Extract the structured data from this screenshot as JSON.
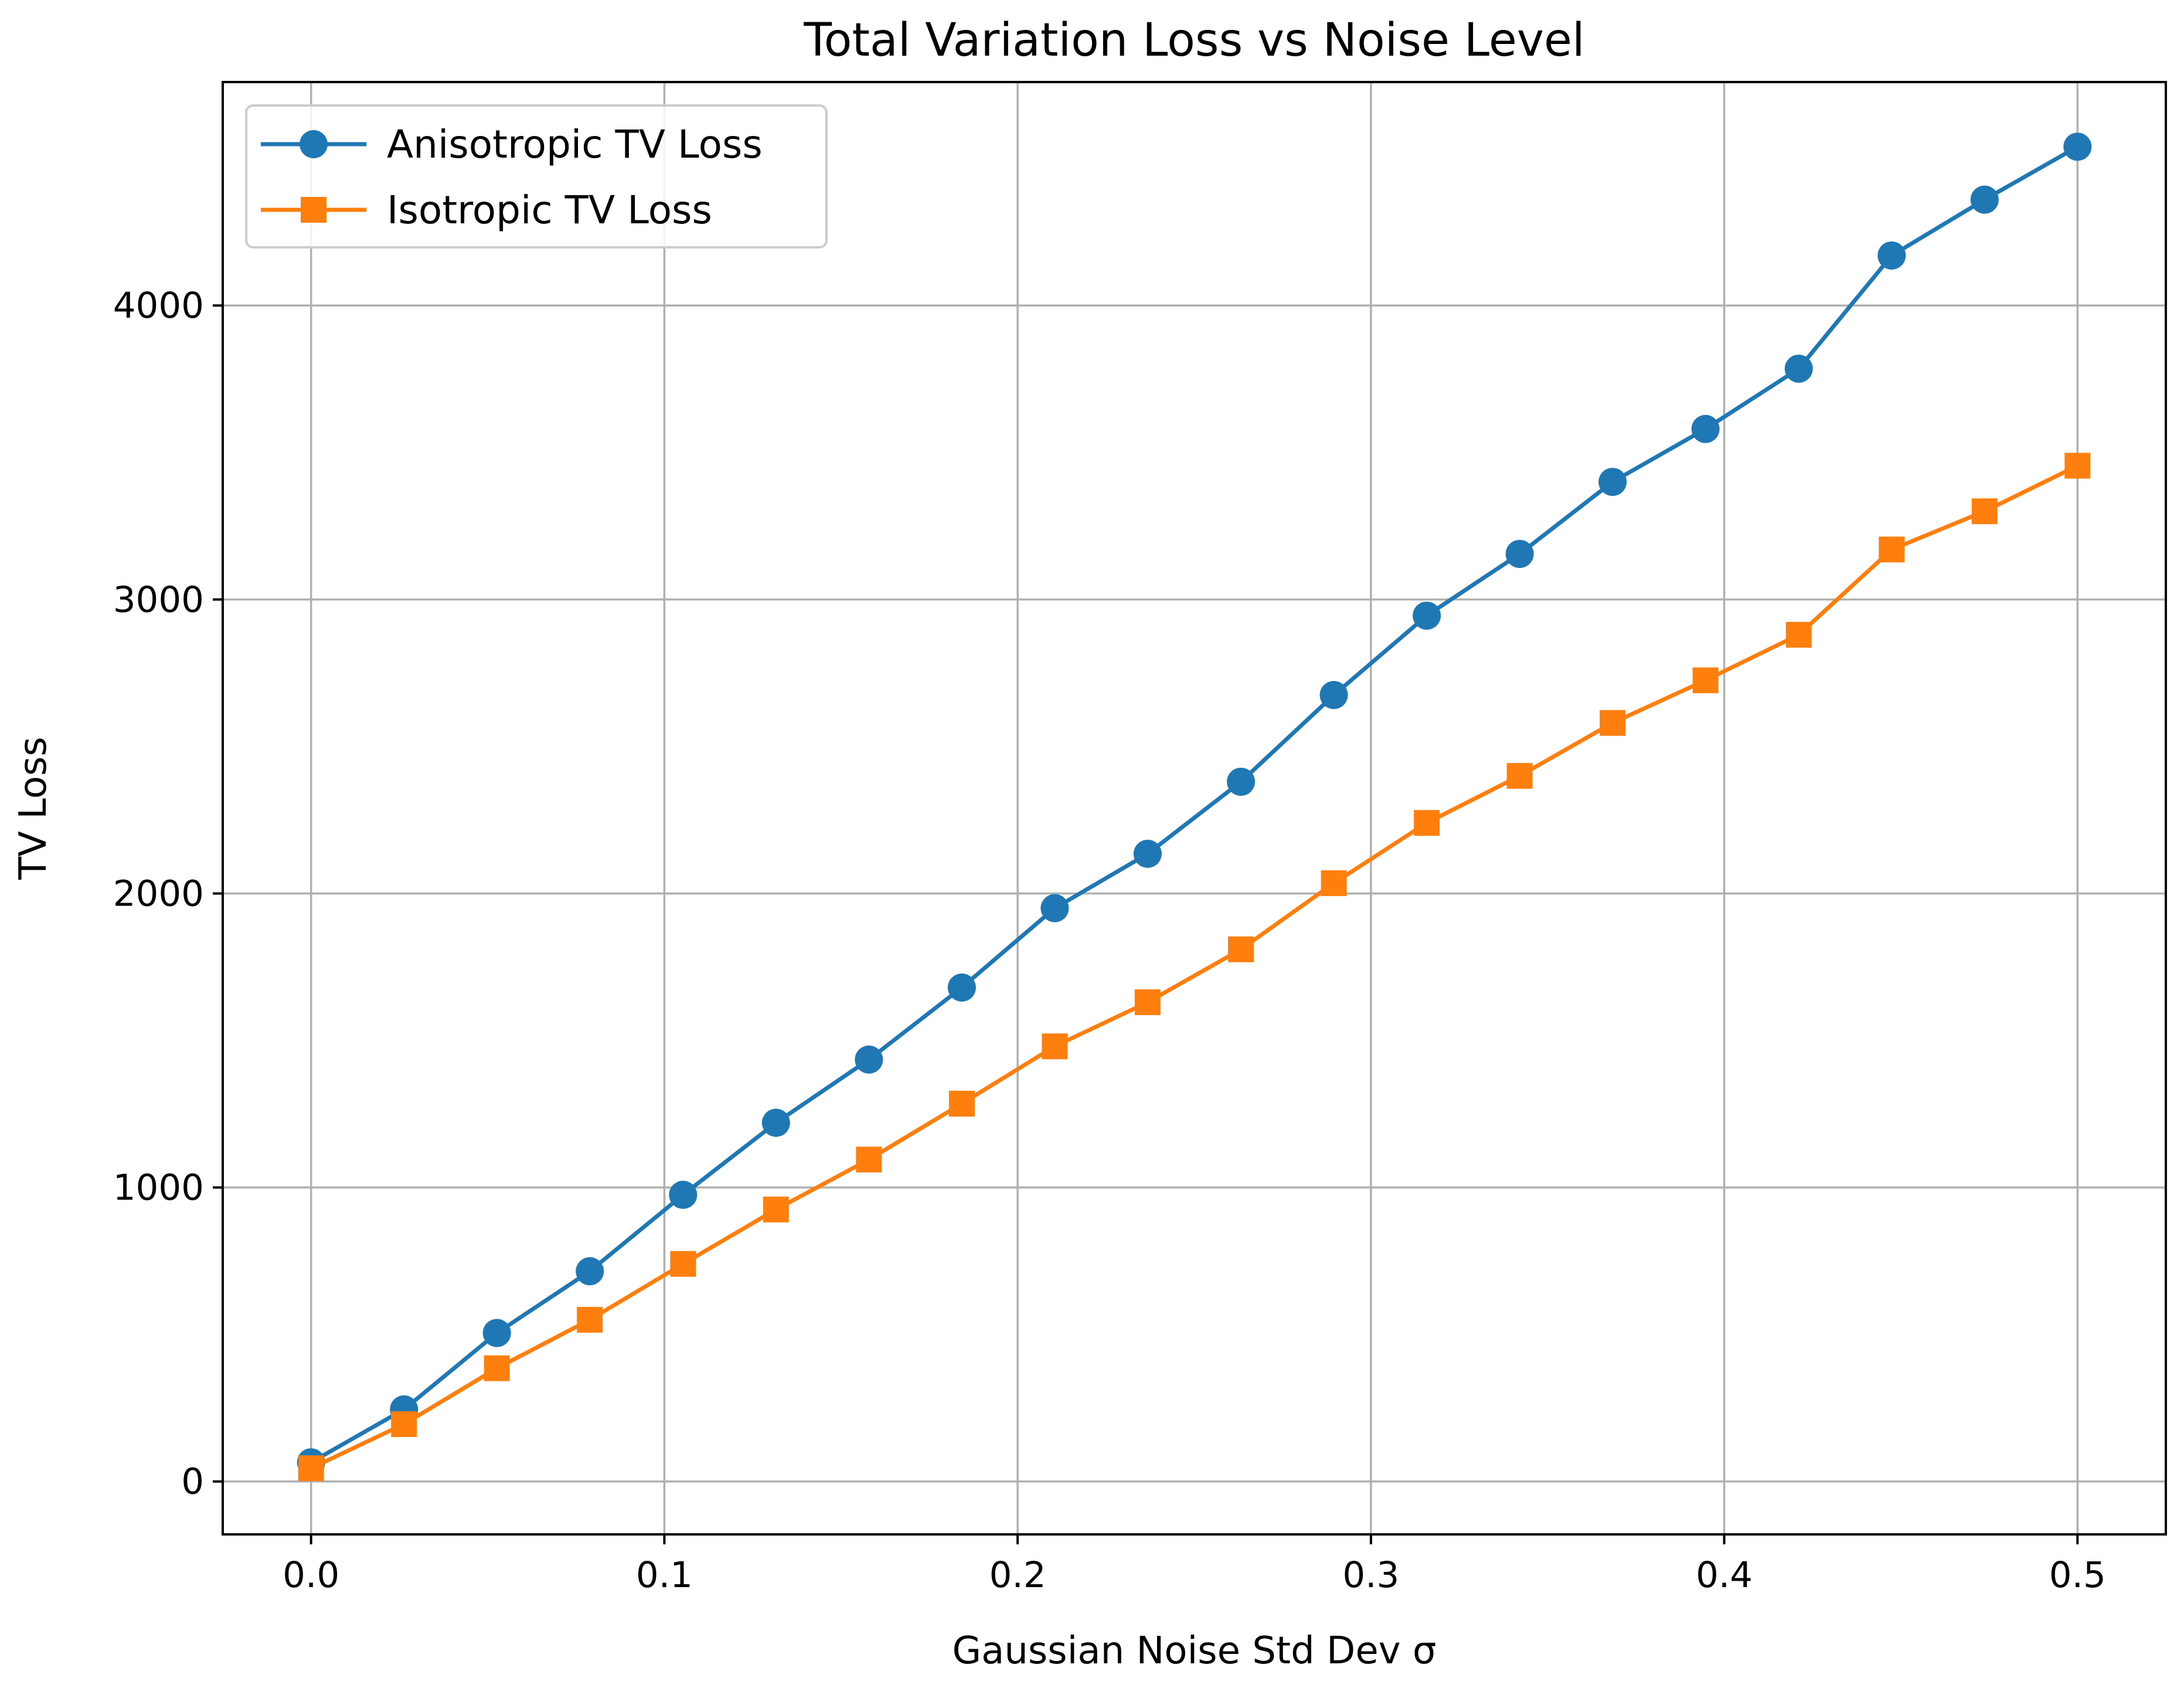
{
  "chart_data": {
    "type": "line",
    "title": "Total Variation Loss vs Noise Level",
    "xlabel": "Gaussian Noise Std Dev σ",
    "ylabel": "TV Loss",
    "xlim": [
      -0.025,
      0.525
    ],
    "ylim": [
      -180,
      4760
    ],
    "xticks": [
      0.0,
      0.1,
      0.2,
      0.3,
      0.4,
      0.5
    ],
    "xtick_labels": [
      "0.0",
      "0.1",
      "0.2",
      "0.3",
      "0.4",
      "0.5"
    ],
    "yticks": [
      0,
      1000,
      2000,
      3000,
      4000
    ],
    "ytick_labels": [
      "0",
      "1000",
      "2000",
      "3000",
      "4000"
    ],
    "grid": true,
    "legend_position": "top-left",
    "x": [
      0.0,
      0.0263,
      0.0526,
      0.0789,
      0.1053,
      0.1316,
      0.1579,
      0.1842,
      0.2105,
      0.2368,
      0.2632,
      0.2895,
      0.3158,
      0.3421,
      0.3684,
      0.3947,
      0.4211,
      0.4474,
      0.4737,
      0.5
    ],
    "series": [
      {
        "name": "Anisotropic TV Loss",
        "color": "#1f77b4",
        "marker": "circle",
        "values": [
          65,
          245,
          505,
          715,
          975,
          1220,
          1435,
          1680,
          1950,
          2135,
          2380,
          2675,
          2945,
          3155,
          3400,
          3580,
          3785,
          4170,
          4360,
          4540
        ]
      },
      {
        "name": "Isotropic TV Loss",
        "color": "#ff7f0e",
        "marker": "square",
        "values": [
          45,
          195,
          385,
          550,
          740,
          925,
          1095,
          1285,
          1480,
          1630,
          1810,
          2035,
          2240,
          2400,
          2580,
          2725,
          2880,
          3170,
          3300,
          3455
        ]
      }
    ]
  }
}
